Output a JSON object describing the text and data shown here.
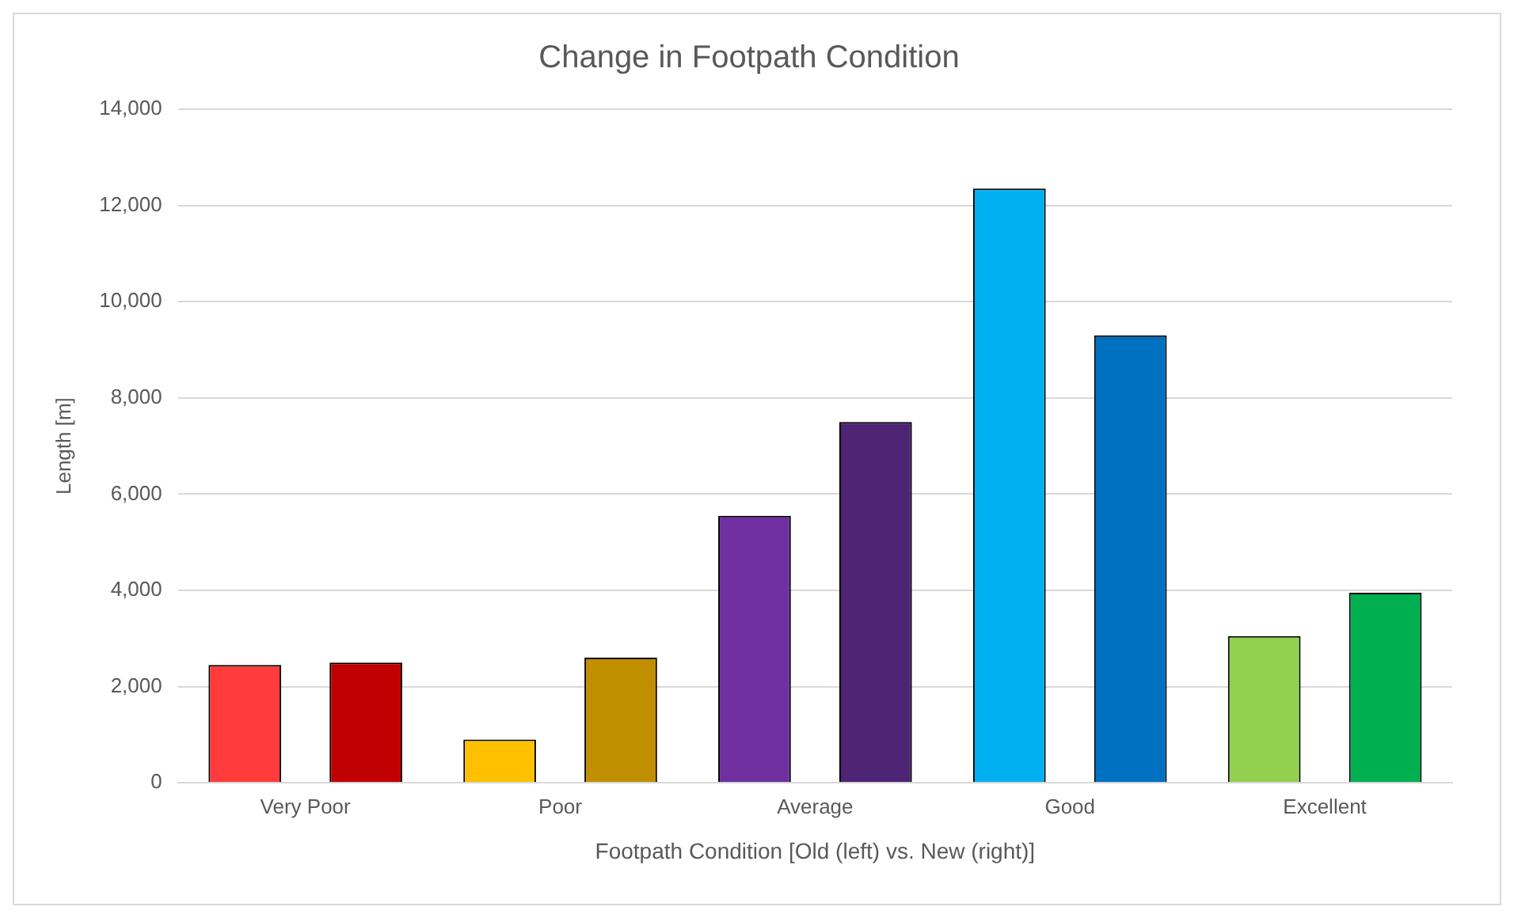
{
  "chart_data": {
    "type": "bar",
    "title": "Change in Footpath Condition",
    "xlabel": "Footpath Condition [Old (left) vs. New (right)]",
    "ylabel": "Length [m]",
    "categories": [
      "Very Poor",
      "Poor",
      "Average",
      "Good",
      "Excellent"
    ],
    "series": [
      {
        "colors": [
          "#ff3b3b",
          "#ffc000",
          "#7030a0",
          "#00b0f0",
          "#92d050"
        ],
        "values": [
          2450,
          900,
          5550,
          12350,
          3050
        ]
      },
      {
        "colors": [
          "#c00000",
          "#bf8f00",
          "#4e2474",
          "#0070c0",
          "#00b050"
        ],
        "values": [
          2500,
          2600,
          7500,
          9300,
          3950
        ]
      }
    ],
    "ylim": [
      0,
      14000
    ],
    "yticks": [
      0,
      {
        "value": 2000,
        "label": "2,000"
      },
      {
        "value": 4000,
        "label": "4,000"
      },
      {
        "value": 6000,
        "label": "6,000"
      },
      {
        "value": 8000,
        "label": "8,000"
      },
      {
        "value": 10000,
        "label": "10,000"
      },
      {
        "value": 12000,
        "label": "12,000"
      },
      {
        "value": 14000,
        "label": "14,000"
      }
    ],
    "grid": "y",
    "legend": false
  }
}
